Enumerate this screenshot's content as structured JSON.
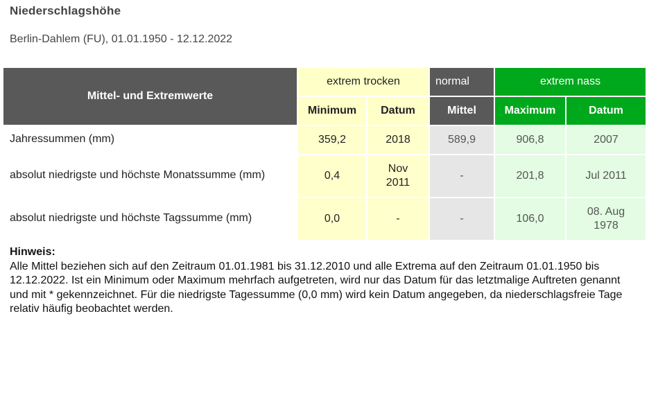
{
  "header": {
    "title": "Niederschlagshöhe",
    "subtitle": "Berlin-Dahlem (FU), 01.01.1950 - 12.12.2022"
  },
  "table": {
    "corner_label": "Mittel- und Extremwerte",
    "groups": {
      "dry": "extrem trocken",
      "normal": "normal",
      "wet": "extrem nass"
    },
    "columns": {
      "minimum": "Minimum",
      "date_min": "Datum",
      "mean": "Mittel",
      "maximum": "Maximum",
      "date_max": "Datum"
    },
    "rows": [
      {
        "label": "Jahressummen (mm)",
        "minimum": "359,2",
        "date_min": "2018",
        "mean": "589,9",
        "maximum": "906,8",
        "date_max": "2007"
      },
      {
        "label": "absolut niedrigste und höchste Monatssumme (mm)",
        "minimum": "0,4",
        "date_min": "Nov 2011",
        "mean": "-",
        "maximum": "201,8",
        "date_max": "Jul 2011"
      },
      {
        "label": "absolut niedrigste und höchste Tagssumme (mm)",
        "minimum": "0,0",
        "date_min": "-",
        "mean": "-",
        "maximum": "106,0",
        "date_max": "08. Aug 1978"
      }
    ]
  },
  "note": {
    "heading": "Hinweis:",
    "text": "Alle Mittel beziehen sich auf den Zeitraum 01.01.1981 bis 31.12.2010 und alle Extrema auf den Zeitraum 01.01.1950 bis 12.12.2022. Ist ein Minimum oder Maximum mehrfach aufgetreten, wird nur das Datum für das letztmalige Auftreten genannt und mit * gekennzeichnet. Für die niedrigste Tagessumme (0,0 mm) wird kein Datum angegeben, da niederschlagsfreie Tage relativ häufig beobachtet werden."
  },
  "colors": {
    "header_gray": "#595959",
    "dry_yellow": "#ffffc8",
    "wet_green": "#00a81c",
    "wet_light": "#e3fce3",
    "normal_light": "#e6e6e6"
  }
}
